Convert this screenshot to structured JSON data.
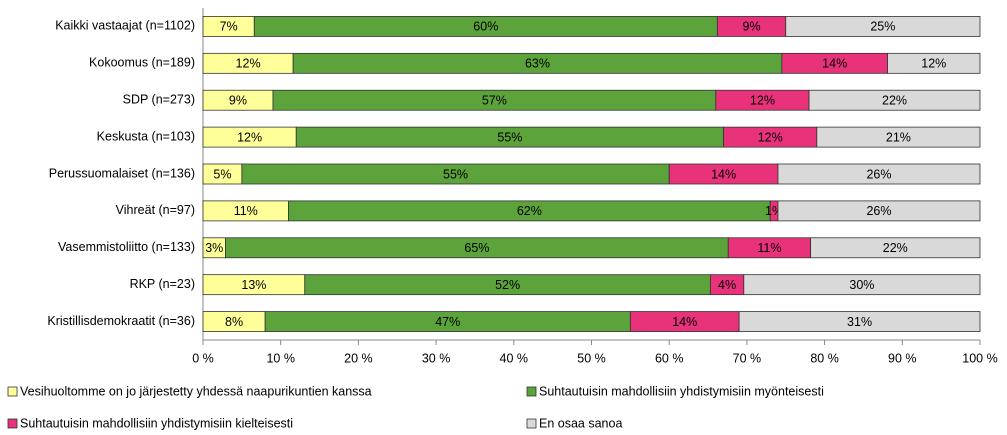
{
  "chart_data": {
    "type": "stacked_barh",
    "categories": [
      "Kaikki vastaajat (n=1102)",
      "Kokoomus (n=189)",
      "SDP (n=273)",
      "Keskusta (n=103)",
      "Perussuomalaiset (n=136)",
      "Vihreät (n=97)",
      "Vasemmistoliitto (n=133)",
      "RKP (n=23)",
      "Kristillisdemokraatit (n=36)"
    ],
    "series": [
      {
        "name": "Vesihuoltomme on jo järjestetty yhdessä naapurikuntien kanssa",
        "color": "#ffff99",
        "values": [
          6.6,
          11.6,
          9,
          12,
          5,
          11,
          2.9,
          13.1,
          8
        ],
        "value_labels": [
          "7%",
          "12%",
          "9%",
          "12%",
          "5%",
          "11%",
          "3%",
          "13%",
          "8%"
        ]
      },
      {
        "name": "Suhtautuisin mahdollisiin yhdistymisiin myönteisesti",
        "color": "#5ba33a",
        "values": [
          59.6,
          62.9,
          57,
          55,
          55,
          62,
          64.7,
          52.2,
          47
        ],
        "value_labels": [
          "60%",
          "63%",
          "57%",
          "55%",
          "55%",
          "62%",
          "65%",
          "52%",
          "47%"
        ]
      },
      {
        "name": "Suhtautuisin mahdollisiin yhdistymisiin kielteisesti",
        "color": "#e8337a",
        "values": [
          8.8,
          13.6,
          12,
          12,
          14,
          1,
          10.6,
          4.3,
          14
        ],
        "value_labels": [
          "9%",
          "14%",
          "12%",
          "12%",
          "14%",
          "1%",
          "11%",
          "4%",
          "14%"
        ]
      },
      {
        "name": "En osaa sanoa",
        "color": "#d9d9d9",
        "values": [
          25,
          11.9,
          22,
          21,
          26,
          26,
          21.8,
          30.4,
          31
        ],
        "value_labels": [
          "25%",
          "12%",
          "22%",
          "21%",
          "26%",
          "26%",
          "22%",
          "30%",
          "31%"
        ]
      }
    ],
    "xlim": [
      0,
      100
    ],
    "xticks": [
      {
        "value": 0,
        "label": "0 %"
      },
      {
        "value": 10,
        "label": "10 %"
      },
      {
        "value": 20,
        "label": "20 %"
      },
      {
        "value": 30,
        "label": "30 %"
      },
      {
        "value": 40,
        "label": "40 %"
      },
      {
        "value": 50,
        "label": "50 %"
      },
      {
        "value": 60,
        "label": "60 %"
      },
      {
        "value": 70,
        "label": "70 %"
      },
      {
        "value": 80,
        "label": "80 %"
      },
      {
        "value": 90,
        "label": "90 %"
      },
      {
        "value": 100,
        "label": "100 %"
      }
    ],
    "legend": "bottom"
  }
}
